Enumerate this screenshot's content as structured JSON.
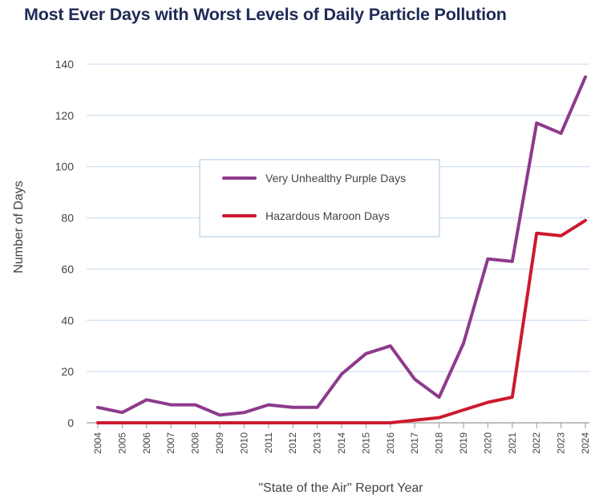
{
  "chart_data": {
    "type": "line",
    "title": "Most Ever Days with Worst Levels of Daily Particle Pollution",
    "xlabel": "\"State of the Air\" Report Year",
    "ylabel": "Number of Days",
    "ylim": [
      0,
      140
    ],
    "yticks": [
      "0",
      "20",
      "40",
      "60",
      "80",
      "100",
      "120",
      "140"
    ],
    "grid": true,
    "legend_position": "center",
    "categories": [
      "2004",
      "2005",
      "2006",
      "2007",
      "2008",
      "2009",
      "2010",
      "2011",
      "2012",
      "2013",
      "2014",
      "2015",
      "2016",
      "2017",
      "2018",
      "2019",
      "2020",
      "2021",
      "2022",
      "2023",
      "2024"
    ],
    "series": [
      {
        "name": "Very Unhealthy Purple Days",
        "color": "#8e3a8c",
        "values": [
          6,
          4,
          9,
          7,
          7,
          3,
          4,
          7,
          6,
          6,
          19,
          27,
          30,
          17,
          10,
          31,
          64,
          63,
          117,
          113,
          135
        ]
      },
      {
        "name": "Hazardous Maroon Days",
        "color": "#cc1a2e",
        "values": [
          0,
          0,
          0,
          0,
          0,
          0,
          0,
          0,
          0,
          0,
          0,
          0,
          0,
          1,
          2,
          5,
          8,
          10,
          74,
          73,
          79
        ]
      }
    ]
  }
}
